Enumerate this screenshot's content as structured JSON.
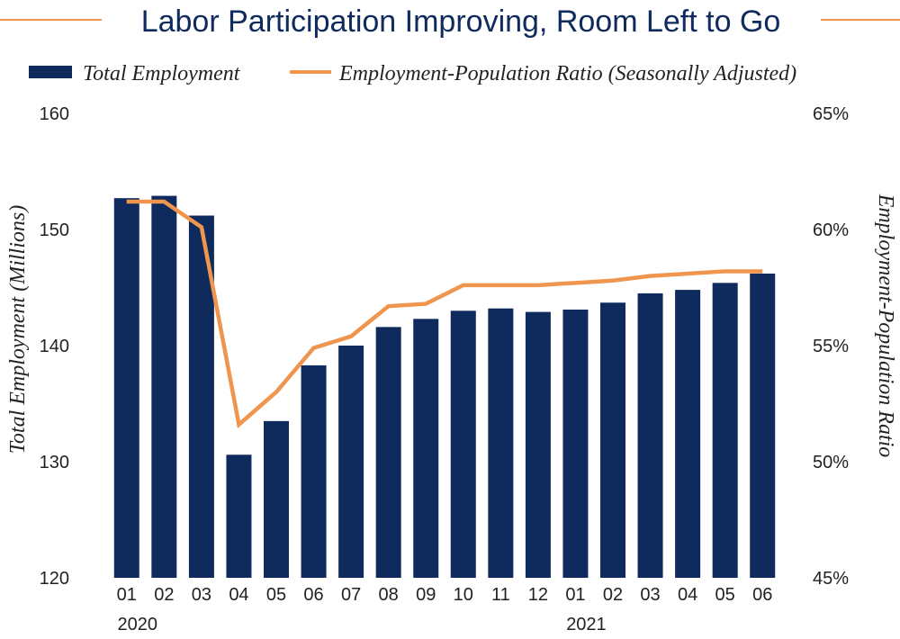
{
  "chart_data": {
    "type": "bar",
    "title": "Labor Participation Improving, Room Left to Go",
    "categories": [
      "01",
      "02",
      "03",
      "04",
      "05",
      "06",
      "07",
      "08",
      "09",
      "10",
      "11",
      "12",
      "01",
      "02",
      "03",
      "04",
      "05",
      "06"
    ],
    "year_labels": [
      {
        "label": "2020",
        "category_index": 0
      },
      {
        "label": "2021",
        "category_index": 12
      }
    ],
    "series": [
      {
        "name": "Total Employment",
        "type": "bar",
        "axis": "left",
        "color": "#0f2a5c",
        "values": [
          152.7,
          152.9,
          151.2,
          130.6,
          133.5,
          138.3,
          140.0,
          141.6,
          142.3,
          143.0,
          143.2,
          142.9,
          143.1,
          143.7,
          144.5,
          144.8,
          145.4,
          146.2
        ]
      },
      {
        "name": "Employment-Population Ratio (Seasonally Adjusted)",
        "type": "line",
        "axis": "right",
        "color": "#f0954e",
        "values": [
          61.2,
          61.2,
          60.1,
          51.6,
          53.0,
          54.9,
          55.4,
          56.7,
          56.8,
          57.6,
          57.6,
          57.6,
          57.7,
          57.8,
          58.0,
          58.1,
          58.2,
          58.2
        ]
      }
    ],
    "y_left": {
      "label": "Total Employment (Millions)",
      "ylim": [
        120,
        160
      ],
      "ticks": [
        120,
        130,
        140,
        150,
        160
      ],
      "tick_labels": [
        "120",
        "130",
        "140",
        "150",
        "160"
      ]
    },
    "y_right": {
      "label": "Employment-Population Ratio",
      "ylim": [
        45,
        65
      ],
      "ticks": [
        45,
        50,
        55,
        60,
        65
      ],
      "tick_labels": [
        "45%",
        "50%",
        "55%",
        "60%",
        "65%"
      ]
    },
    "legend": {
      "position": "top",
      "items": [
        {
          "label": "Total Employment",
          "marker": "bar"
        },
        {
          "label": "Employment-Population Ratio (Seasonally Adjusted)",
          "marker": "line"
        }
      ]
    },
    "grid": false
  }
}
